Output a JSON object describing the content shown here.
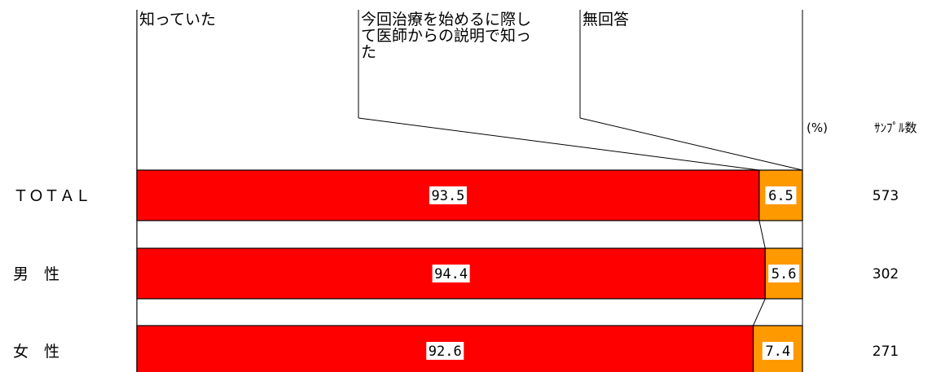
{
  "chart_data": {
    "type": "bar",
    "orientation": "horizontal",
    "stacked": true,
    "categories": [
      "TOTAL",
      "男性",
      "女性"
    ],
    "category_labels_display": [
      "ＴＯＴＡＬ",
      "男　性",
      "女　性"
    ],
    "series": [
      {
        "name": "知っていた",
        "values": [
          93.5,
          94.4,
          92.6
        ],
        "labels": [
          "93.5",
          "94.4",
          "92.6"
        ],
        "color": "#ff0000"
      },
      {
        "name": "今回治療を始めるに際して医師からの説明で知った",
        "values": [
          6.5,
          5.6,
          7.4
        ],
        "labels": [
          "6.5",
          "5.6",
          "7.4"
        ],
        "color": "#ff9900"
      },
      {
        "name": "無回答",
        "values": [
          0,
          0,
          0
        ],
        "labels": [
          "",
          "",
          ""
        ],
        "color": "#ffffff"
      }
    ],
    "legend_lines": [
      [
        "知っていた"
      ],
      [
        "今回治療を始めるに際し",
        "て医師からの説明で知っ",
        "た"
      ],
      [
        "無回答"
      ]
    ],
    "unit_label": "(%)",
    "sample_header": "ｻﾝﾌﾟﾙ数",
    "sample_counts": [
      "573",
      "302",
      "271"
    ],
    "xlim": [
      0,
      100
    ],
    "grid": false,
    "legend_position": "top"
  }
}
